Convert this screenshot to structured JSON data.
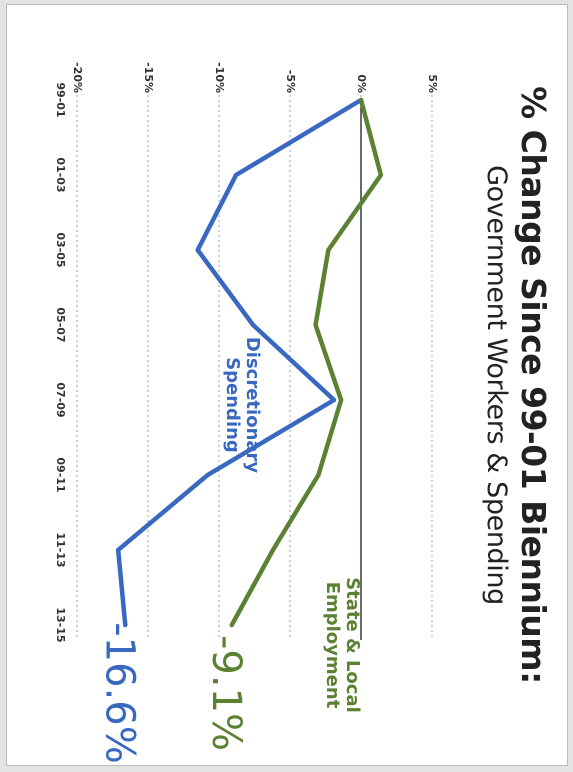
{
  "chart_data": {
    "type": "line",
    "title": "% Change Since 99-01 Biennium:",
    "subtitle": "Government Workers & Spending",
    "categories": [
      "99-01",
      "01-03",
      "03-05",
      "05-07",
      "07-09",
      "09-11",
      "11-13",
      "13-15"
    ],
    "ylim": [
      -20,
      5
    ],
    "y_ticks": [
      5,
      0,
      -5,
      -10,
      -15,
      -20
    ],
    "y_tick_labels": [
      "5%",
      "0%",
      "-5%",
      "-10%",
      "-15%",
      "-20%"
    ],
    "grid": true,
    "series": [
      {
        "name": "Discretionary Spending",
        "color": "#3868c0",
        "values": [
          0,
          -8.8,
          -11.5,
          -7.6,
          -1.9,
          -10.8,
          -17.1,
          -16.6
        ]
      },
      {
        "name": "State & Local Employment",
        "color": "#5a8232",
        "values": [
          0,
          1.4,
          -2.3,
          -3.2,
          -1.4,
          -3.0,
          -6.2,
          -9.1
        ]
      }
    ],
    "annotations": [
      {
        "series": "Discretionary Spending",
        "lines": [
          "Discretionary",
          "Spending"
        ]
      },
      {
        "series": "State & Local Employment",
        "lines": [
          "State & Local",
          "Employment"
        ]
      }
    ],
    "end_labels": [
      "-9.1%",
      "-16.6%"
    ]
  }
}
